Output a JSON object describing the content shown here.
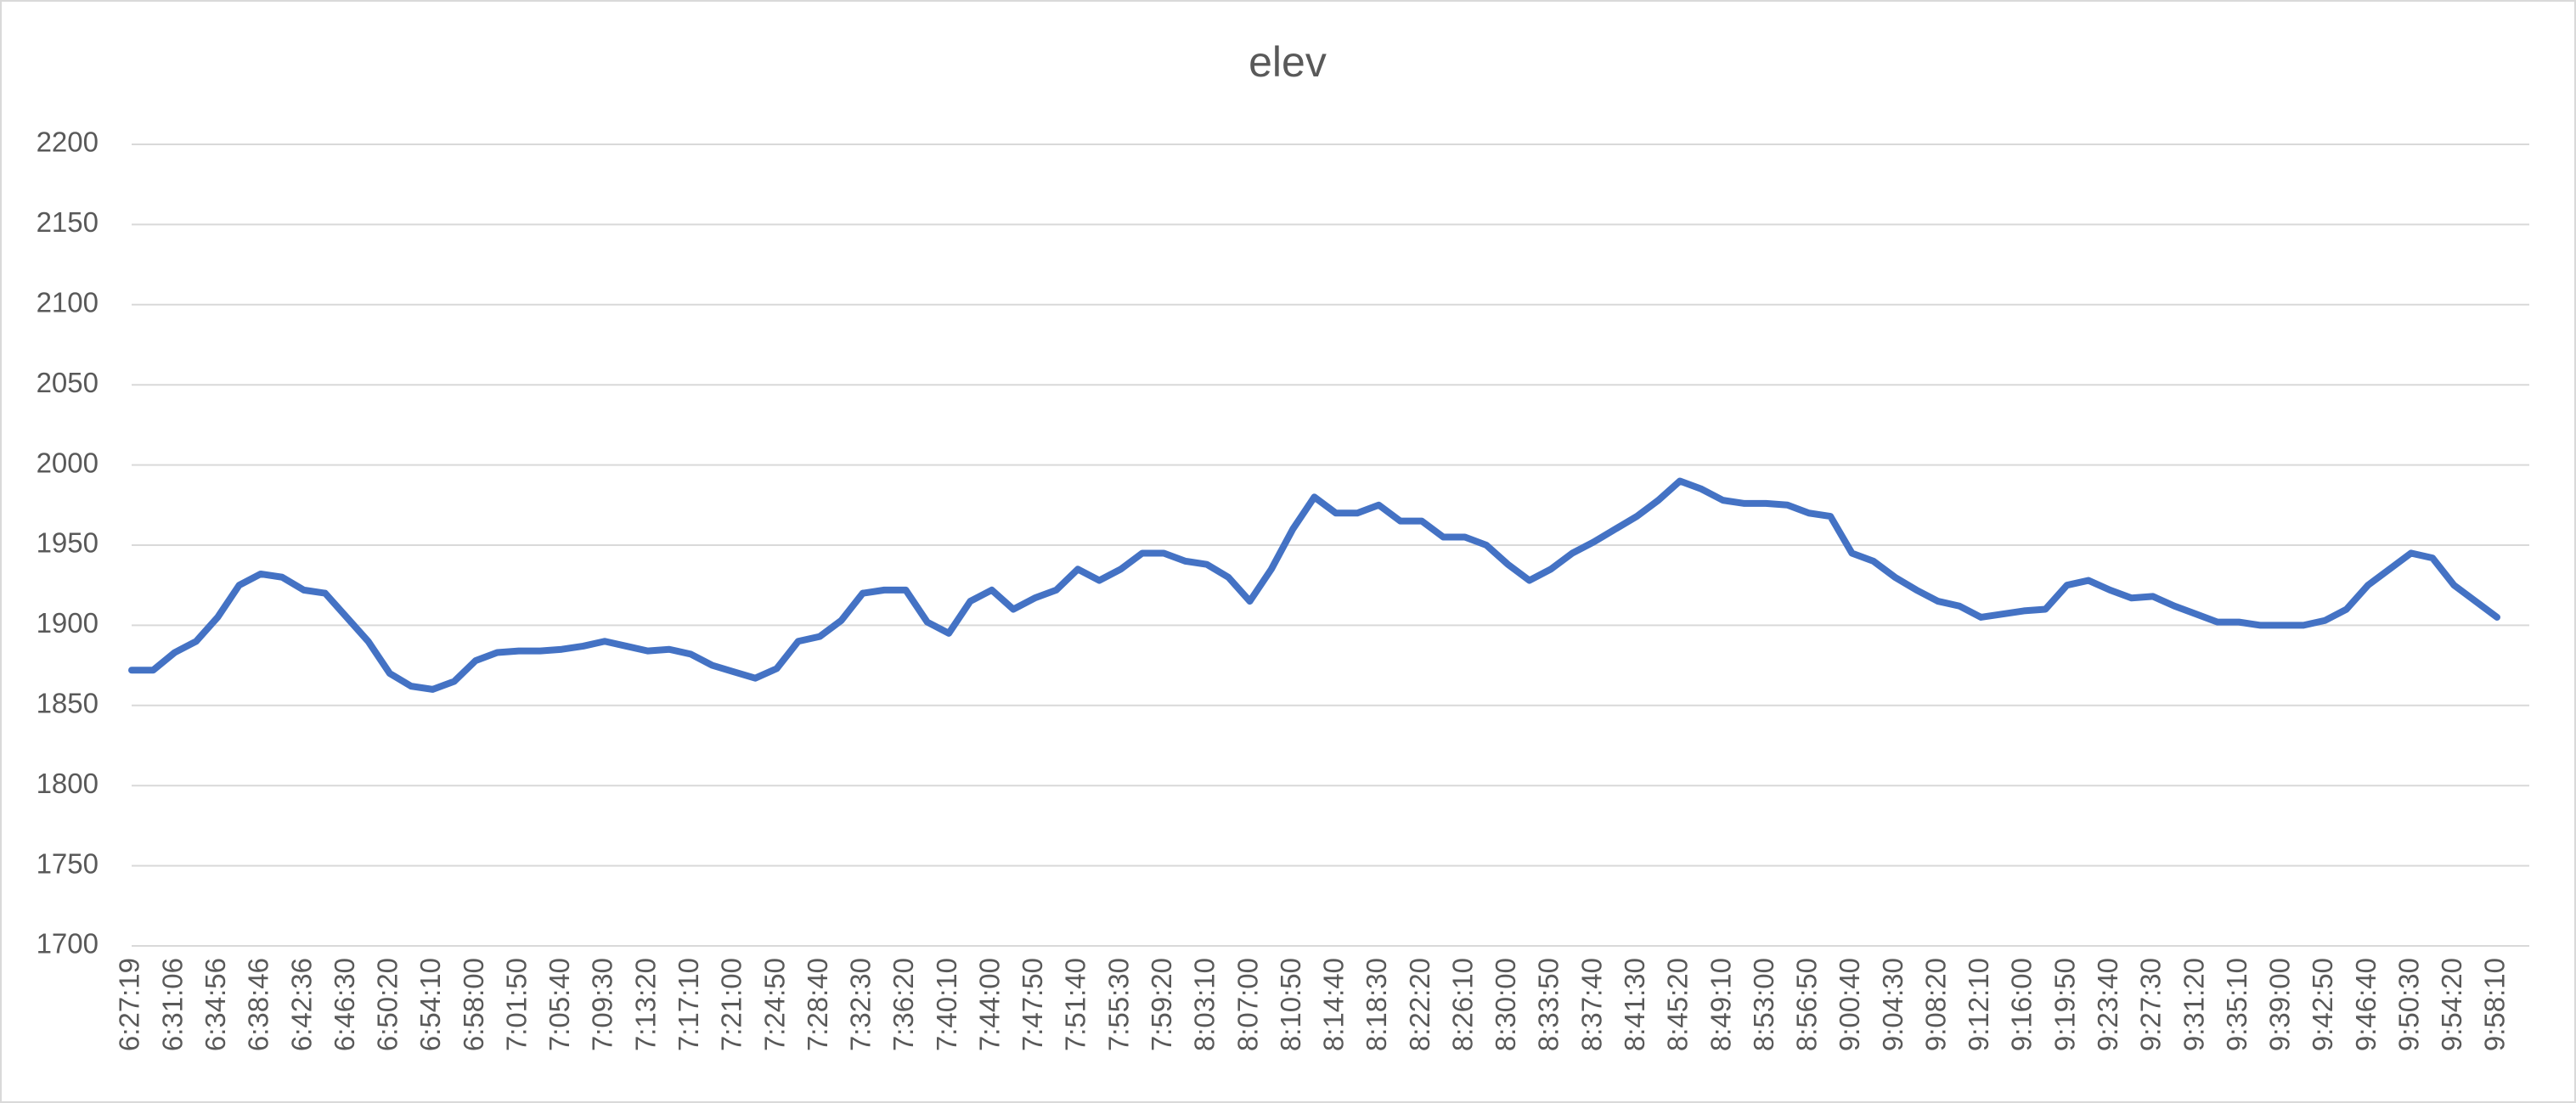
{
  "chart_data": {
    "type": "line",
    "title": "elev",
    "categories": [
      "6:27:19",
      null,
      "6:31:06",
      null,
      "6:34:56",
      null,
      "6:38:46",
      null,
      "6:42:36",
      null,
      "6:46:30",
      null,
      "6:50:20",
      null,
      "6:54:10",
      null,
      "6:58:00",
      null,
      "7:01:50",
      null,
      "7:05:40",
      null,
      "7:09:30",
      null,
      "7:13:20",
      null,
      "7:17:10",
      null,
      "7:21:00",
      null,
      "7:24:50",
      null,
      "7:28:40",
      null,
      "7:32:30",
      null,
      "7:36:20",
      null,
      "7:40:10",
      null,
      "7:44:00",
      null,
      "7:47:50",
      null,
      "7:51:40",
      null,
      "7:55:30",
      null,
      "7:59:20",
      null,
      "8:03:10",
      null,
      "8:07:00",
      null,
      "8:10:50",
      null,
      "8:14:40",
      null,
      "8:18:30",
      null,
      "8:22:20",
      null,
      "8:26:10",
      null,
      "8:30:00",
      null,
      "8:33:50",
      null,
      "8:37:40",
      null,
      "8:41:30",
      null,
      "8:45:20",
      null,
      "8:49:10",
      null,
      "8:53:00",
      null,
      "8:56:50",
      null,
      "9:00:40",
      null,
      "9:04:30",
      null,
      "9:08:20",
      null,
      "9:12:10",
      null,
      "9:16:00",
      null,
      "9:19:50",
      null,
      "9:23:40",
      null,
      "9:27:30",
      null,
      "9:31:20",
      null,
      "9:35:10",
      null,
      "9:39:00",
      null,
      "9:42:50",
      null,
      "9:46:40",
      null,
      "9:50:30",
      null,
      "9:54:20",
      null,
      "9:58:10"
    ],
    "series": [
      {
        "name": "elev",
        "color": "#4472c4",
        "values": [
          1872,
          1872,
          1883,
          1890,
          1905,
          1925,
          1932,
          1930,
          1922,
          1920,
          1905,
          1890,
          1870,
          1862,
          1860,
          1865,
          1878,
          1883,
          1884,
          1884,
          1885,
          1887,
          1890,
          1887,
          1884,
          1885,
          1882,
          1875,
          1871,
          1867,
          1873,
          1890,
          1893,
          1903,
          1920,
          1922,
          1922,
          1902,
          1895,
          1915,
          1922,
          1910,
          1917,
          1922,
          1935,
          1928,
          1935,
          1945,
          1945,
          1940,
          1938,
          1930,
          1915,
          1935,
          1960,
          1980,
          1970,
          1970,
          1975,
          1965,
          1965,
          1955,
          1955,
          1950,
          1938,
          1928,
          1935,
          1945,
          1952,
          1960,
          1968,
          1978,
          1990,
          1985,
          1978,
          1976,
          1976,
          1975,
          1970,
          1968,
          1945,
          1940,
          1930,
          1922,
          1915,
          1912,
          1905,
          1907,
          1909,
          1910,
          1925,
          1928,
          1922,
          1917,
          1918,
          1912,
          1907,
          1902,
          1902,
          1900,
          1900,
          1900,
          1903,
          1910,
          1925,
          1935,
          1945,
          1942,
          1925,
          1915,
          1905
        ]
      }
    ],
    "ylim": [
      1700,
      2200
    ],
    "yticks": [
      1700,
      1750,
      1800,
      1850,
      1900,
      1950,
      2000,
      2050,
      2100,
      2150,
      2200
    ],
    "grid": true
  }
}
